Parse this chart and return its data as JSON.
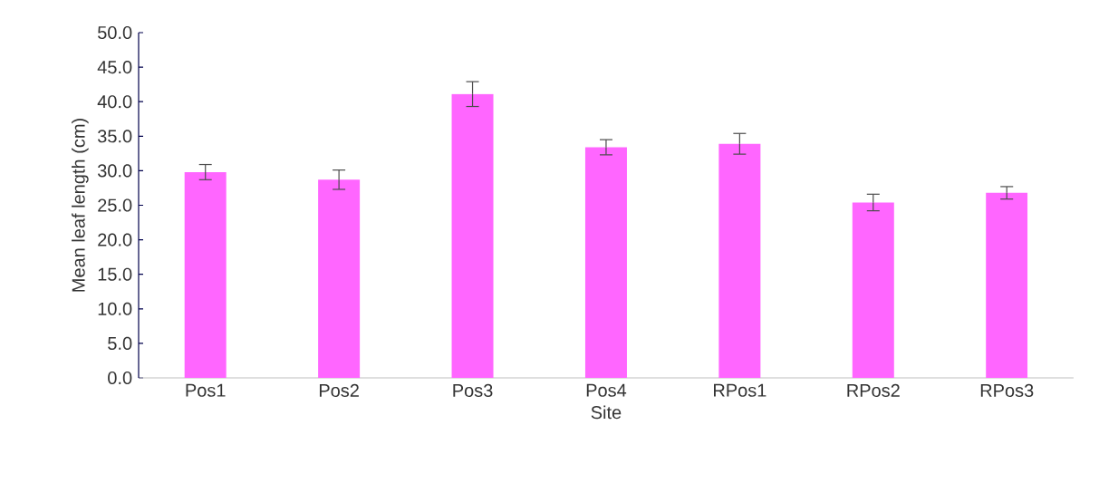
{
  "chart_data": {
    "type": "bar",
    "xlabel": "Site",
    "ylabel": "Mean leaf length (cm)",
    "categories": [
      "Pos1",
      "Pos2",
      "Pos3",
      "Pos4",
      "RPos1",
      "RPos2",
      "RPos3"
    ],
    "values": [
      29.8,
      28.7,
      41.1,
      33.4,
      33.9,
      25.4,
      26.8
    ],
    "errors": [
      1.1,
      1.4,
      1.8,
      1.1,
      1.5,
      1.2,
      0.9
    ],
    "color": "#ff66ff",
    "ylim": [
      0,
      50
    ],
    "yticks": [
      {
        "value": 0,
        "label": "0.0"
      },
      {
        "value": 5,
        "label": "5.0"
      },
      {
        "value": 10,
        "label": "10.0"
      },
      {
        "value": 15,
        "label": "15.0"
      },
      {
        "value": 20,
        "label": "20.0"
      },
      {
        "value": 25,
        "label": "25.0"
      },
      {
        "value": 30,
        "label": "30.0"
      },
      {
        "value": 35,
        "label": "35.0"
      },
      {
        "value": 40,
        "label": "40.0"
      },
      {
        "value": 45,
        "label": "45.0"
      },
      {
        "value": 50,
        "label": "50.0"
      }
    ],
    "grid": false
  }
}
